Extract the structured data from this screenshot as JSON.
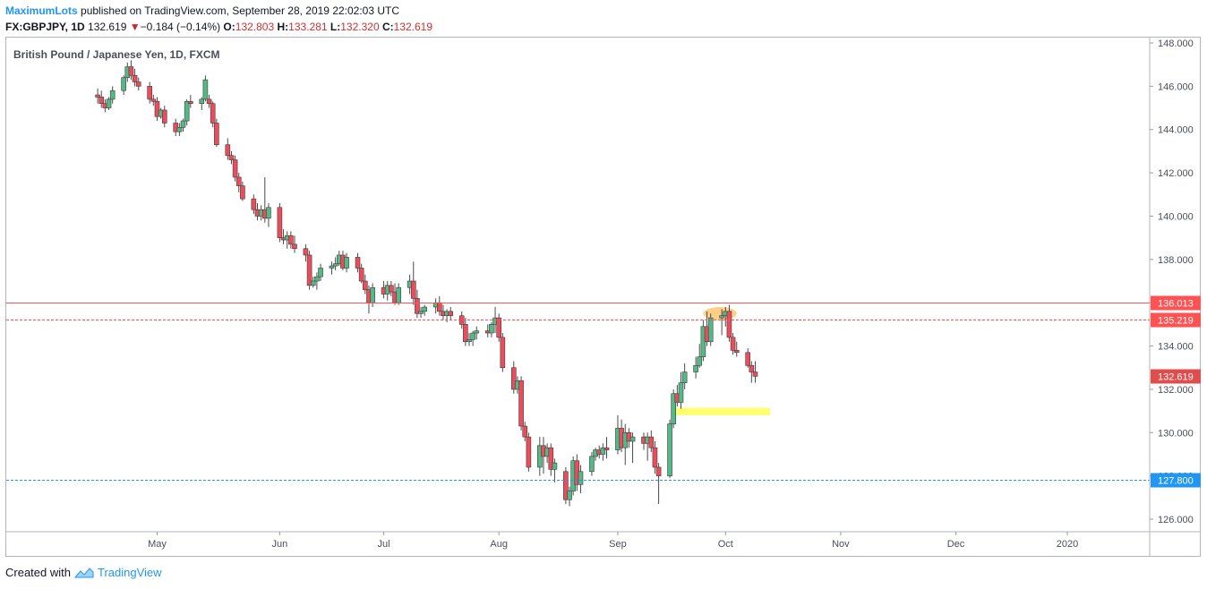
{
  "header": {
    "author": "MaximumLots",
    "published_text": " published on TradingView.com, September 28, 2019 22:02:03 UTC"
  },
  "quote": {
    "symbol": "FX:GBPJPY, 1D",
    "last": "132.619",
    "change": "−0.184 (−0.14%)",
    "o_label": "O:",
    "o": "132.803",
    "h_label": "H:",
    "h": "133.281",
    "l_label": "L:",
    "l": "132.320",
    "c_label": "C:",
    "c": "132.619"
  },
  "footer": {
    "created_with": "Created with",
    "brand": "TradingView"
  },
  "colors": {
    "up": "#53b987",
    "down": "#eb4d5c",
    "resistance": "#ff5252",
    "support": "#2196f3",
    "highlight_yellow": "#ffff59",
    "highlight_orange": "#ffa726",
    "last_price_tag": "#e04d4d"
  },
  "chart_data": {
    "type": "candlestick",
    "title": "British Pound / Japanese Yen, 1D, FXCM",
    "xlabel": "",
    "ylabel": "",
    "ylim": [
      125.5,
      148.2
    ],
    "y_ticks": [
      126,
      128,
      130,
      132,
      134,
      136,
      138,
      140,
      142,
      144,
      146,
      148
    ],
    "y_tick_labels": [
      "126.000",
      "128.000",
      "130.000",
      "132.000",
      "134.000",
      "136.000",
      "138.000",
      "140.000",
      "142.000",
      "144.000",
      "146.000",
      "148.000"
    ],
    "x_ticks": [
      {
        "label": "May",
        "date": "2019-05-01"
      },
      {
        "label": "Jun",
        "date": "2019-06-03"
      },
      {
        "label": "Jul",
        "date": "2019-07-01"
      },
      {
        "label": "Aug",
        "date": "2019-08-01"
      },
      {
        "label": "Sep",
        "date": "2019-09-02"
      },
      {
        "label": "Oct",
        "date": "2019-10-01"
      },
      {
        "label": "Nov",
        "date": "2019-11-01"
      },
      {
        "label": "Dec",
        "date": "2019-12-02"
      },
      {
        "label": "2020",
        "date": "2020-01-01"
      }
    ],
    "candles": [
      {
        "d": "2019-04-15",
        "o": 145.6,
        "h": 145.9,
        "l": 145.2,
        "c": 145.5
      },
      {
        "d": "2019-04-16",
        "o": 145.5,
        "h": 145.8,
        "l": 145.0,
        "c": 145.2
      },
      {
        "d": "2019-04-17",
        "o": 145.2,
        "h": 145.4,
        "l": 144.8,
        "c": 145.0
      },
      {
        "d": "2019-04-18",
        "o": 145.0,
        "h": 145.5,
        "l": 144.9,
        "c": 145.4
      },
      {
        "d": "2019-04-19",
        "o": 145.4,
        "h": 146.0,
        "l": 145.2,
        "c": 145.8
      },
      {
        "d": "2019-04-22",
        "o": 145.8,
        "h": 146.5,
        "l": 145.6,
        "c": 146.4
      },
      {
        "d": "2019-04-23",
        "o": 146.4,
        "h": 147.1,
        "l": 146.2,
        "c": 146.9
      },
      {
        "d": "2019-04-24",
        "o": 146.9,
        "h": 147.2,
        "l": 146.3,
        "c": 146.5
      },
      {
        "d": "2019-04-25",
        "o": 146.5,
        "h": 146.8,
        "l": 146.0,
        "c": 146.2
      },
      {
        "d": "2019-04-26",
        "o": 146.2,
        "h": 146.4,
        "l": 145.8,
        "c": 146.0
      },
      {
        "d": "2019-04-29",
        "o": 146.0,
        "h": 146.2,
        "l": 145.2,
        "c": 145.4
      },
      {
        "d": "2019-04-30",
        "o": 145.4,
        "h": 145.6,
        "l": 145.1,
        "c": 145.3
      },
      {
        "d": "2019-05-01",
        "o": 145.3,
        "h": 145.5,
        "l": 144.4,
        "c": 144.6
      },
      {
        "d": "2019-05-02",
        "o": 144.6,
        "h": 145.0,
        "l": 144.5,
        "c": 144.9
      },
      {
        "d": "2019-05-03",
        "o": 144.9,
        "h": 145.1,
        "l": 144.1,
        "c": 144.3
      },
      {
        "d": "2019-05-06",
        "o": 144.3,
        "h": 144.5,
        "l": 143.7,
        "c": 143.9
      },
      {
        "d": "2019-05-07",
        "o": 143.9,
        "h": 144.3,
        "l": 143.7,
        "c": 144.1
      },
      {
        "d": "2019-05-08",
        "o": 144.1,
        "h": 144.5,
        "l": 143.9,
        "c": 144.4
      },
      {
        "d": "2019-05-09",
        "o": 144.4,
        "h": 145.4,
        "l": 144.2,
        "c": 145.3
      },
      {
        "d": "2019-05-10",
        "o": 145.3,
        "h": 145.6,
        "l": 145.0,
        "c": 145.2
      },
      {
        "d": "2019-05-13",
        "o": 145.2,
        "h": 145.5,
        "l": 144.9,
        "c": 145.4
      },
      {
        "d": "2019-05-14",
        "o": 145.4,
        "h": 146.5,
        "l": 145.3,
        "c": 146.3
      },
      {
        "d": "2019-05-15",
        "o": 145.4,
        "h": 145.6,
        "l": 145.0,
        "c": 145.2
      },
      {
        "d": "2019-05-16",
        "o": 145.2,
        "h": 145.3,
        "l": 144.1,
        "c": 144.3
      },
      {
        "d": "2019-05-17",
        "o": 144.3,
        "h": 144.5,
        "l": 143.2,
        "c": 143.3
      },
      {
        "d": "2019-05-20",
        "o": 143.3,
        "h": 143.6,
        "l": 142.6,
        "c": 142.8
      },
      {
        "d": "2019-05-21",
        "o": 142.8,
        "h": 143.0,
        "l": 142.4,
        "c": 142.6
      },
      {
        "d": "2019-05-22",
        "o": 142.6,
        "h": 142.8,
        "l": 141.6,
        "c": 141.8
      },
      {
        "d": "2019-05-23",
        "o": 141.8,
        "h": 142.0,
        "l": 141.1,
        "c": 141.4
      },
      {
        "d": "2019-05-24",
        "o": 141.4,
        "h": 141.6,
        "l": 140.7,
        "c": 140.8
      },
      {
        "d": "2019-05-27",
        "o": 140.8,
        "h": 141.0,
        "l": 140.1,
        "c": 140.3
      },
      {
        "d": "2019-05-28",
        "o": 140.3,
        "h": 140.6,
        "l": 139.8,
        "c": 140.0
      },
      {
        "d": "2019-05-29",
        "o": 140.0,
        "h": 140.5,
        "l": 139.8,
        "c": 140.3
      },
      {
        "d": "2019-05-30",
        "o": 140.3,
        "h": 141.8,
        "l": 139.7,
        "c": 139.9
      },
      {
        "d": "2019-05-31",
        "o": 139.9,
        "h": 140.6,
        "l": 139.5,
        "c": 140.4
      },
      {
        "d": "2019-06-03",
        "o": 140.4,
        "h": 140.6,
        "l": 138.8,
        "c": 139.0
      },
      {
        "d": "2019-06-04",
        "o": 139.0,
        "h": 139.4,
        "l": 138.7,
        "c": 138.9
      },
      {
        "d": "2019-06-05",
        "o": 138.9,
        "h": 139.3,
        "l": 138.5,
        "c": 139.1
      },
      {
        "d": "2019-06-06",
        "o": 139.1,
        "h": 139.3,
        "l": 138.5,
        "c": 138.7
      },
      {
        "d": "2019-06-07",
        "o": 138.7,
        "h": 139.1,
        "l": 138.3,
        "c": 138.5
      },
      {
        "d": "2019-06-10",
        "o": 138.5,
        "h": 138.7,
        "l": 137.9,
        "c": 138.2
      },
      {
        "d": "2019-06-11",
        "o": 138.2,
        "h": 138.4,
        "l": 136.6,
        "c": 136.8
      },
      {
        "d": "2019-06-12",
        "o": 136.8,
        "h": 137.2,
        "l": 136.7,
        "c": 137.0
      },
      {
        "d": "2019-06-13",
        "o": 137.0,
        "h": 137.4,
        "l": 136.6,
        "c": 137.2
      },
      {
        "d": "2019-06-14",
        "o": 137.2,
        "h": 137.8,
        "l": 137.0,
        "c": 137.6
      },
      {
        "d": "2019-06-17",
        "o": 137.6,
        "h": 137.9,
        "l": 137.3,
        "c": 137.7
      },
      {
        "d": "2019-06-18",
        "o": 137.7,
        "h": 138.1,
        "l": 137.5,
        "c": 137.8
      },
      {
        "d": "2019-06-19",
        "o": 137.8,
        "h": 138.4,
        "l": 137.7,
        "c": 138.2
      },
      {
        "d": "2019-06-20",
        "o": 138.2,
        "h": 138.4,
        "l": 137.5,
        "c": 137.6
      },
      {
        "d": "2019-06-21",
        "o": 137.6,
        "h": 138.3,
        "l": 137.4,
        "c": 138.1
      },
      {
        "d": "2019-06-24",
        "o": 138.1,
        "h": 138.3,
        "l": 137.4,
        "c": 137.6
      },
      {
        "d": "2019-06-25",
        "o": 137.6,
        "h": 137.8,
        "l": 136.9,
        "c": 137.0
      },
      {
        "d": "2019-06-26",
        "o": 137.0,
        "h": 137.3,
        "l": 136.4,
        "c": 136.6
      },
      {
        "d": "2019-06-27",
        "o": 136.6,
        "h": 136.8,
        "l": 135.5,
        "c": 136.0
      },
      {
        "d": "2019-06-28",
        "o": 136.0,
        "h": 136.9,
        "l": 135.8,
        "c": 136.7
      },
      {
        "d": "2019-07-01",
        "o": 136.7,
        "h": 137.0,
        "l": 136.2,
        "c": 136.4
      },
      {
        "d": "2019-07-02",
        "o": 136.4,
        "h": 137.0,
        "l": 136.1,
        "c": 136.8
      },
      {
        "d": "2019-07-03",
        "o": 136.8,
        "h": 137.0,
        "l": 136.3,
        "c": 136.5
      },
      {
        "d": "2019-07-04",
        "o": 136.5,
        "h": 136.9,
        "l": 135.9,
        "c": 136.0
      },
      {
        "d": "2019-07-05",
        "o": 136.0,
        "h": 136.9,
        "l": 135.9,
        "c": 136.7
      },
      {
        "d": "2019-07-08",
        "o": 136.7,
        "h": 137.3,
        "l": 136.4,
        "c": 137.0
      },
      {
        "d": "2019-07-09",
        "o": 137.0,
        "h": 137.9,
        "l": 135.9,
        "c": 136.2
      },
      {
        "d": "2019-07-10",
        "o": 136.2,
        "h": 136.6,
        "l": 135.3,
        "c": 135.5
      },
      {
        "d": "2019-07-11",
        "o": 135.5,
        "h": 135.8,
        "l": 135.3,
        "c": 135.6
      },
      {
        "d": "2019-07-12",
        "o": 135.6,
        "h": 135.9,
        "l": 135.4,
        "c": 135.8
      },
      {
        "d": "2019-07-15",
        "o": 135.8,
        "h": 136.2,
        "l": 135.5,
        "c": 136.0
      },
      {
        "d": "2019-07-16",
        "o": 136.0,
        "h": 136.3,
        "l": 135.4,
        "c": 135.6
      },
      {
        "d": "2019-07-17",
        "o": 135.6,
        "h": 135.9,
        "l": 135.2,
        "c": 135.4
      },
      {
        "d": "2019-07-18",
        "o": 135.4,
        "h": 135.7,
        "l": 135.1,
        "c": 135.6
      },
      {
        "d": "2019-07-19",
        "o": 135.6,
        "h": 135.8,
        "l": 135.2,
        "c": 135.4
      },
      {
        "d": "2019-07-22",
        "o": 135.4,
        "h": 135.6,
        "l": 134.8,
        "c": 135.0
      },
      {
        "d": "2019-07-23",
        "o": 135.0,
        "h": 135.3,
        "l": 134.0,
        "c": 134.2
      },
      {
        "d": "2019-07-24",
        "o": 134.2,
        "h": 134.6,
        "l": 134.0,
        "c": 134.3
      },
      {
        "d": "2019-07-25",
        "o": 134.3,
        "h": 134.7,
        "l": 134.0,
        "c": 134.6
      },
      {
        "d": "2019-07-26",
        "o": 134.6,
        "h": 134.9,
        "l": 134.3,
        "c": 134.7
      },
      {
        "d": "2019-07-29",
        "o": 134.7,
        "h": 135.0,
        "l": 134.4,
        "c": 134.6
      },
      {
        "d": "2019-07-30",
        "o": 134.6,
        "h": 135.1,
        "l": 134.4,
        "c": 135.0
      },
      {
        "d": "2019-07-31",
        "o": 135.0,
        "h": 135.8,
        "l": 134.6,
        "c": 135.3
      },
      {
        "d": "2019-08-01",
        "o": 135.3,
        "h": 135.5,
        "l": 134.2,
        "c": 134.4
      },
      {
        "d": "2019-08-02",
        "o": 134.4,
        "h": 134.6,
        "l": 132.8,
        "c": 133.0
      },
      {
        "d": "2019-08-05",
        "o": 133.0,
        "h": 133.3,
        "l": 131.8,
        "c": 132.0
      },
      {
        "d": "2019-08-06",
        "o": 132.0,
        "h": 132.6,
        "l": 131.8,
        "c": 132.4
      },
      {
        "d": "2019-08-07",
        "o": 132.4,
        "h": 132.6,
        "l": 130.1,
        "c": 130.3
      },
      {
        "d": "2019-08-08",
        "o": 130.3,
        "h": 130.5,
        "l": 129.6,
        "c": 129.8
      },
      {
        "d": "2019-08-09",
        "o": 129.8,
        "h": 130.0,
        "l": 128.2,
        "c": 128.4
      },
      {
        "d": "2019-08-12",
        "o": 128.4,
        "h": 129.8,
        "l": 128.0,
        "c": 129.4
      },
      {
        "d": "2019-08-13",
        "o": 129.4,
        "h": 129.8,
        "l": 128.1,
        "c": 128.9
      },
      {
        "d": "2019-08-14",
        "o": 128.9,
        "h": 129.5,
        "l": 128.6,
        "c": 129.3
      },
      {
        "d": "2019-08-15",
        "o": 129.3,
        "h": 129.5,
        "l": 128.0,
        "c": 128.3
      },
      {
        "d": "2019-08-16",
        "o": 128.3,
        "h": 128.8,
        "l": 127.7,
        "c": 128.6
      },
      {
        "d": "2019-08-19",
        "o": 128.2,
        "h": 128.4,
        "l": 126.7,
        "c": 126.9
      },
      {
        "d": "2019-08-20",
        "o": 126.9,
        "h": 127.5,
        "l": 126.6,
        "c": 127.3
      },
      {
        "d": "2019-08-21",
        "o": 127.3,
        "h": 128.9,
        "l": 127.1,
        "c": 128.7
      },
      {
        "d": "2019-08-22",
        "o": 128.7,
        "h": 129.0,
        "l": 127.3,
        "c": 127.6
      },
      {
        "d": "2019-08-23",
        "o": 127.6,
        "h": 128.5,
        "l": 127.2,
        "c": 128.2
      },
      {
        "d": "2019-08-26",
        "o": 128.2,
        "h": 129.1,
        "l": 128.0,
        "c": 128.9
      },
      {
        "d": "2019-08-27",
        "o": 128.9,
        "h": 129.3,
        "l": 128.7,
        "c": 129.2
      },
      {
        "d": "2019-08-28",
        "o": 129.2,
        "h": 129.4,
        "l": 128.8,
        "c": 129.0
      },
      {
        "d": "2019-08-29",
        "o": 129.0,
        "h": 129.5,
        "l": 128.7,
        "c": 129.3
      },
      {
        "d": "2019-08-30",
        "o": 129.3,
        "h": 129.8,
        "l": 128.8,
        "c": 129.2
      },
      {
        "d": "2019-09-02",
        "o": 129.2,
        "h": 130.8,
        "l": 129.0,
        "c": 130.2
      },
      {
        "d": "2019-09-03",
        "o": 130.2,
        "h": 130.6,
        "l": 129.1,
        "c": 129.3
      },
      {
        "d": "2019-09-04",
        "o": 129.3,
        "h": 130.4,
        "l": 128.5,
        "c": 130.0
      },
      {
        "d": "2019-09-05",
        "o": 130.0,
        "h": 130.2,
        "l": 129.3,
        "c": 129.6
      },
      {
        "d": "2019-09-06",
        "o": 129.6,
        "h": 130.0,
        "l": 128.6,
        "c": 129.8
      },
      {
        "d": "2019-09-09",
        "o": 129.8,
        "h": 130.0,
        "l": 129.2,
        "c": 129.5
      },
      {
        "d": "2019-09-10",
        "o": 129.5,
        "h": 130.0,
        "l": 128.7,
        "c": 129.8
      },
      {
        "d": "2019-09-11",
        "o": 129.8,
        "h": 130.1,
        "l": 129.1,
        "c": 129.3
      },
      {
        "d": "2019-09-12",
        "o": 129.3,
        "h": 129.6,
        "l": 128.1,
        "c": 128.4
      },
      {
        "d": "2019-09-13",
        "o": 128.4,
        "h": 128.6,
        "l": 126.7,
        "c": 128.0
      },
      {
        "d": "2019-09-16",
        "o": 128.0,
        "h": 130.6,
        "l": 127.9,
        "c": 130.4
      },
      {
        "d": "2019-09-17",
        "o": 130.4,
        "h": 132.0,
        "l": 130.2,
        "c": 131.8
      },
      {
        "d": "2019-09-18",
        "o": 131.8,
        "h": 132.2,
        "l": 131.2,
        "c": 131.4
      },
      {
        "d": "2019-09-19",
        "o": 131.4,
        "h": 132.8,
        "l": 131.1,
        "c": 132.3
      },
      {
        "d": "2019-09-20",
        "o": 132.3,
        "h": 133.2,
        "l": 132.0,
        "c": 132.8
      },
      {
        "d": "2019-09-23",
        "o": 132.8,
        "h": 133.5,
        "l": 132.5,
        "c": 133.1
      },
      {
        "d": "2019-09-24",
        "o": 133.1,
        "h": 134.1,
        "l": 133.0,
        "c": 133.5
      },
      {
        "d": "2019-09-25",
        "o": 133.5,
        "h": 135.2,
        "l": 133.3,
        "c": 134.9
      },
      {
        "d": "2019-09-26",
        "o": 134.9,
        "h": 135.6,
        "l": 134.0,
        "c": 134.2
      },
      {
        "d": "2019-09-27",
        "o": 134.2,
        "h": 135.5,
        "l": 134.0,
        "c": 135.3
      },
      {
        "d": "2019-09-30",
        "o": 135.3,
        "h": 135.7,
        "l": 134.5,
        "c": 135.4
      },
      {
        "d": "2019-10-01",
        "o": 135.4,
        "h": 135.8,
        "l": 134.9,
        "c": 135.6
      },
      {
        "d": "2019-10-02",
        "o": 135.6,
        "h": 135.9,
        "l": 134.2,
        "c": 134.4
      },
      {
        "d": "2019-10-03",
        "o": 134.4,
        "h": 134.6,
        "l": 133.6,
        "c": 133.8
      },
      {
        "d": "2019-10-04",
        "o": 133.8,
        "h": 134.2,
        "l": 133.5,
        "c": 133.7
      },
      {
        "d": "2019-10-07",
        "o": 133.7,
        "h": 133.9,
        "l": 133.0,
        "c": 133.1
      },
      {
        "d": "2019-10-08",
        "o": 133.1,
        "h": 133.3,
        "l": 132.3,
        "c": 132.8
      },
      {
        "d": "2019-10-09",
        "o": 132.8,
        "h": 133.3,
        "l": 132.3,
        "c": 132.6
      }
    ],
    "horizontal_lines": [
      {
        "name": "resistance",
        "value": 136.013,
        "label": "136.013",
        "style": "solid",
        "color": "#ff5252"
      },
      {
        "name": "resistance-dashed",
        "value": 135.219,
        "label": "135.219",
        "style": "dashed",
        "color": "#ff5252"
      },
      {
        "name": "support",
        "value": 127.8,
        "label": "127.800",
        "style": "dashed",
        "color": "#2196f3"
      }
    ],
    "last_price": {
      "value": 132.619,
      "label": "132.619"
    },
    "highlight_zones": [
      {
        "name": "orange-ellipse",
        "date_from": "2019-09-25",
        "date_to": "2019-10-04",
        "price_center": 135.5,
        "price_half_height": 0.3,
        "color": "#ffa726"
      },
      {
        "name": "yellow-box",
        "date_from": "2019-09-17",
        "date_to": "2019-10-13",
        "price_top": 131.15,
        "price_bottom": 130.8,
        "color": "#ffff59"
      }
    ],
    "grid": false,
    "legend": "none"
  }
}
